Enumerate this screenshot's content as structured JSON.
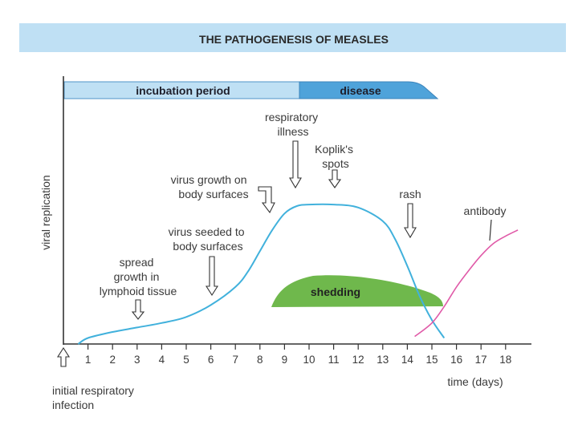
{
  "title": "THE PATHOGENESIS OF MEASLES",
  "phases": {
    "incubation": "incubation period",
    "disease": "disease",
    "incubation_days": [
      0,
      9.5
    ],
    "disease_days": [
      9.5,
      14
    ]
  },
  "ylabel": "viral replication",
  "xlabel": "time (days)",
  "shedding_label": "shedding",
  "annotations": {
    "initial_infection": [
      "initial respiratory",
      "infection"
    ],
    "spread_growth": [
      "spread",
      "growth in",
      "lymphoid tissue"
    ],
    "virus_seeded": [
      "virus seeded to",
      "body surfaces"
    ],
    "virus_growth": [
      "virus growth on",
      "body surfaces"
    ],
    "respiratory_illness": [
      "respiratory",
      "illness"
    ],
    "kopliks_spots": [
      "Koplik's",
      "spots"
    ],
    "rash": "rash",
    "antibody": "antibody"
  },
  "chart_data": {
    "type": "line",
    "title": "THE PATHOGENESIS OF MEASLES",
    "xlabel": "time (days)",
    "ylabel": "viral replication",
    "xlim": [
      0,
      19
    ],
    "ylim": [
      0,
      100
    ],
    "tick_labels": [
      "1",
      "2",
      "3",
      "4",
      "5",
      "6",
      "7",
      "8",
      "9",
      "10",
      "11",
      "12",
      "13",
      "14",
      "15",
      "16",
      "17",
      "18"
    ],
    "series": [
      {
        "name": "viral replication",
        "color": "#41b1dc",
        "x": [
          0.6,
          1,
          2,
          3,
          4,
          5,
          6,
          7,
          7.5,
          8,
          8.5,
          9,
          9.5,
          10,
          11,
          12,
          13,
          13.5,
          14,
          14.5,
          15,
          15.5
        ],
        "y": [
          0,
          4,
          8,
          11,
          14,
          18,
          26,
          38,
          48,
          62,
          76,
          87,
          92,
          93,
          93,
          91,
          82,
          70,
          52,
          32,
          16,
          4
        ]
      },
      {
        "name": "antibody",
        "color": "#e05aa8",
        "x": [
          14.3,
          15,
          15.5,
          16,
          16.5,
          17,
          17.5,
          18,
          18.5
        ],
        "y": [
          5,
          14,
          25,
          38,
          49,
          59,
          67,
          72,
          76
        ]
      }
    ],
    "bands": [
      {
        "name": "incubation period",
        "from": 0,
        "to": 9.5
      },
      {
        "name": "disease",
        "from": 9.5,
        "to": 14
      }
    ],
    "areas": [
      {
        "name": "shedding",
        "from": 8.5,
        "to": 15.5
      }
    ]
  }
}
